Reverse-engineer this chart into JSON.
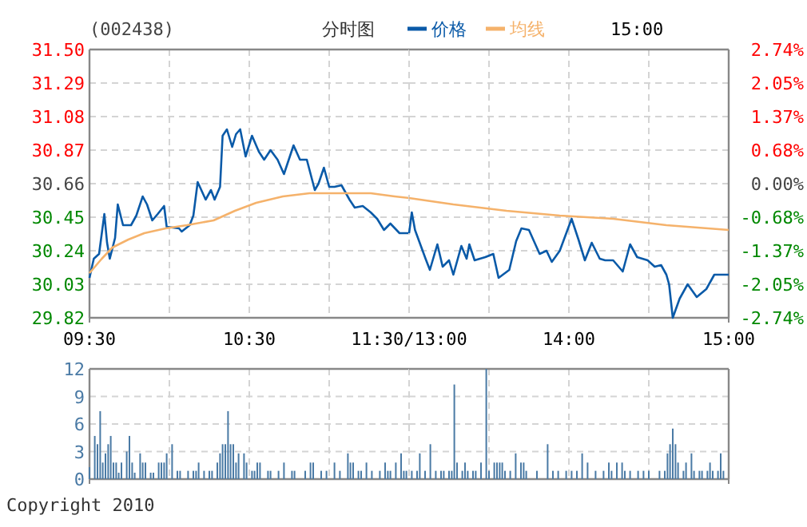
{
  "chart_data": [
    {
      "type": "line",
      "title": "(002438)",
      "subtitle": "分时图",
      "legend": "top",
      "grid": true,
      "xlim": [
        9.5,
        11.5
      ],
      "xticks": [
        {
          "value": 9.5,
          "label": "09:30"
        },
        {
          "value": 10,
          "label": null
        },
        {
          "value": 10.5,
          "label": "10:30"
        },
        {
          "value": 11,
          "label": null
        },
        {
          "value": 11.5,
          "label": "11:30/13:00"
        }
      ],
      "ylim": [
        29.82,
        31.5
      ],
      "yticks": [
        29.82,
        30.03,
        30.24,
        30.45,
        30.66,
        30.87,
        31.08,
        31.29,
        {
          "value": 31.5,
          "label": "31.50"
        }
      ],
      "series": [
        {
          "name": "价格",
          "color": "#0a5aa8",
          "x": [
            9.5,
            9.527,
            9.56,
            9.593,
            9.61,
            9.627,
            9.66,
            9.677,
            9.71,
            9.76,
            9.793,
            9.833,
            9.86,
            9.893,
            9.927,
            9.967,
            9.983,
            10.06,
            10.077,
            10.127,
            10.15,
            10.177,
            10.227,
            10.26,
            10.283,
            10.317,
            10.333,
            10.36,
            10.393,
            10.417,
            10.443,
            10.477,
            10.517,
            10.56,
            10.593,
            10.633,
            10.677,
            10.717,
            10.777,
            10.817,
            10.86,
            10.91,
            10.933,
            10.967,
            11,
            11.033,
            11.077,
            11.127,
            11.16,
            11.21,
            11.26,
            11.3,
            11.343,
            11.383,
            11.44,
            11.5
          ],
          "values": [
            30.07,
            30.19,
            30.22,
            30.47,
            30.29,
            30.19,
            30.32,
            30.53,
            30.4,
            30.4,
            30.46,
            30.58,
            30.53,
            30.43,
            30.47,
            30.52,
            30.39,
            30.38,
            30.36,
            30.4,
            30.46,
            30.67,
            30.56,
            30.62,
            30.56,
            30.64,
            30.96,
            31.0,
            30.89,
            30.97,
            31.0,
            30.83,
            30.96,
            30.86,
            30.81,
            30.87,
            30.81,
            30.72,
            30.9,
            30.81,
            30.81,
            30.62,
            30.66,
            30.76,
            30.64,
            30.64,
            30.65,
            30.56,
            30.51,
            30.52,
            30.48,
            30.44,
            30.37,
            30.41,
            30.35,
            30.35
          ]
        },
        {
          "name": "均线",
          "color": "#f5b26b",
          "x": [
            9.5,
            9.577,
            9.643,
            9.743,
            9.843,
            9.977,
            10.11,
            10.277,
            10.41,
            10.543,
            10.71,
            10.877,
            11.11,
            11.26,
            11.41,
            11.5
          ],
          "values": [
            30.1,
            30.19,
            30.26,
            30.31,
            30.35,
            30.38,
            30.4,
            30.43,
            30.49,
            30.54,
            30.58,
            30.6,
            30.6,
            30.6,
            30.58,
            30.57
          ]
        }
      ]
    },
    {
      "type": "line",
      "annotations": [
        "15:00"
      ],
      "grid": true,
      "tick_labels": "x",
      "xlim": [
        13,
        15
      ],
      "xticks": [
        {
          "value": 13,
          "label": null
        },
        {
          "value": 13.5,
          "label": null
        },
        {
          "value": 14,
          "label": "14:00"
        },
        {
          "value": 14.5,
          "label": null
        },
        {
          "value": 15,
          "label": "15:00"
        }
      ],
      "ylim": [
        29.82,
        31.5
      ],
      "yticks": [
        29.82,
        30.03,
        30.24,
        30.45,
        30.66,
        30.87,
        31.08,
        31.29,
        31.5
      ],
      "y2lim": [
        -2.74,
        2.74
      ],
      "y2ticks": [
        {
          "value": -2.74,
          "label": "-2.74%"
        },
        {
          "value": -2.05,
          "label": "-2.05%"
        },
        {
          "value": -1.37,
          "label": "-1.37%"
        },
        {
          "value": -0.68,
          "label": "-0.68%"
        },
        {
          "value": 0,
          "label": "0.00%"
        },
        {
          "value": 0.68,
          "label": "0.68%"
        },
        {
          "value": 1.37,
          "label": "1.37%"
        },
        {
          "value": 2.05,
          "label": "2.05%"
        },
        {
          "value": 2.74,
          "label": "2.74%"
        }
      ],
      "series": [
        {
          "color": "#0a5aa8",
          "x": [
            13,
            13.017,
            13.037,
            13.103,
            13.13,
            13.177,
            13.21,
            13.25,
            13.277,
            13.327,
            13.36,
            13.377,
            13.41,
            13.477,
            13.527,
            13.56,
            13.627,
            13.67,
            13.703,
            13.75,
            13.817,
            13.86,
            13.893,
            13.943,
            14.017,
            14.06,
            14.1,
            14.143,
            14.193,
            14.227,
            14.277,
            14.337,
            14.383,
            14.427,
            14.493,
            14.537,
            14.577,
            14.61,
            14.627,
            14.65,
            14.693,
            14.743,
            14.8,
            14.86,
            14.91,
            14.943,
            15
          ],
          "values": [
            30.35,
            30.48,
            30.37,
            30.19,
            30.12,
            30.28,
            30.14,
            30.18,
            30.09,
            30.27,
            30.19,
            30.28,
            30.18,
            30.2,
            30.22,
            30.07,
            30.12,
            30.3,
            30.38,
            30.37,
            30.22,
            30.24,
            30.17,
            30.24,
            30.44,
            30.31,
            30.18,
            30.29,
            30.19,
            30.18,
            30.18,
            30.11,
            30.28,
            30.2,
            30.18,
            30.14,
            30.15,
            30.09,
            30.03,
            29.82,
            29.94,
            30.03,
            29.95,
            30.0,
            30.09,
            30.09,
            30.09
          ]
        },
        {
          "color": "#f5b26b",
          "x": [
            13,
            13.277,
            13.61,
            13.943,
            14.277,
            14.61,
            15
          ],
          "values": [
            30.57,
            30.53,
            30.49,
            30.46,
            30.44,
            30.4,
            30.37
          ]
        }
      ]
    },
    {
      "type": "bar",
      "annotations": [
        "Copyright 2010"
      ],
      "grid": true,
      "tick_labels": "y",
      "color": "#4a7aa5",
      "xlim": [
        9.5,
        11.5
      ],
      "xticks": [
        9.5,
        10,
        10.5,
        11,
        11.5
      ],
      "ylim": [
        0,
        12
      ],
      "yticks": [
        0,
        3,
        6,
        9,
        12
      ],
      "x": [
        9.5,
        9.533,
        9.55,
        9.567,
        9.583,
        9.6,
        9.617,
        9.633,
        9.65,
        9.667,
        9.683,
        9.7,
        9.733,
        9.75,
        9.767,
        9.783,
        9.817,
        9.833,
        9.85,
        9.883,
        9.9,
        9.933,
        9.95,
        9.967,
        9.983,
        10.017,
        10.05,
        10.067,
        10.117,
        10.15,
        10.167,
        10.183,
        10.217,
        10.25,
        10.267,
        10.3,
        10.317,
        10.333,
        10.35,
        10.367,
        10.383,
        10.4,
        10.417,
        10.433,
        10.467,
        10.483,
        10.517,
        10.533,
        10.55,
        10.567,
        10.617,
        10.633,
        10.683,
        10.717,
        10.767,
        10.783,
        10.85,
        10.883,
        10.9,
        10.95,
        10.983,
        11.033,
        11.067,
        11.117,
        11.133,
        11.15,
        11.183,
        11.2,
        11.233,
        11.267,
        11.317,
        11.35,
        11.367,
        11.383,
        11.417,
        11.45,
        11.467,
        11.483
      ],
      "values": [
        1.3,
        4.7,
        3.8,
        7.4,
        1.8,
        2.8,
        3.8,
        4.7,
        1.8,
        1.8,
        0.7,
        1.8,
        3.0,
        4.7,
        1.8,
        0.7,
        2.8,
        1.8,
        1.8,
        0.7,
        0.7,
        1.8,
        1.8,
        1.8,
        2.8,
        3.8,
        0.9,
        0.9,
        0.9,
        0.9,
        0.9,
        1.8,
        0.9,
        0.9,
        0.9,
        1.8,
        2.8,
        3.8,
        3.8,
        7.4,
        3.8,
        3.8,
        1.8,
        2.8,
        2.8,
        1.8,
        0.9,
        0.9,
        1.8,
        1.8,
        0.9,
        0.9,
        0.9,
        1.8,
        0.9,
        0.9,
        0.9,
        1.8,
        1.8,
        0.9,
        0.9,
        1.8,
        0.9,
        2.8,
        1.8,
        1.8,
        0.9,
        0.9,
        1.8,
        0.9,
        0.9,
        1.8,
        0.9,
        0.9,
        1.8,
        2.8,
        0.9,
        0.9
      ]
    },
    {
      "type": "bar",
      "grid": true,
      "tick_labels": false,
      "color": "#4a7aa5",
      "xlim": [
        13,
        15
      ],
      "xticks": [
        13,
        13.5,
        14,
        14.5,
        15
      ],
      "ylim": [
        0,
        12
      ],
      "yticks": [
        0,
        3,
        6,
        9,
        12
      ],
      "x": [
        13.017,
        13.05,
        13.067,
        13.1,
        13.133,
        13.167,
        13.2,
        13.217,
        13.25,
        13.267,
        13.283,
        13.3,
        13.333,
        13.35,
        13.367,
        13.4,
        13.417,
        13.45,
        13.483,
        13.5,
        13.533,
        13.55,
        13.567,
        13.583,
        13.6,
        13.633,
        13.667,
        13.7,
        13.717,
        13.733,
        13.8,
        13.867,
        13.9,
        13.933,
        13.983,
        14.017,
        14.05,
        14.083,
        14.117,
        14.167,
        14.217,
        14.25,
        14.267,
        14.3,
        14.333,
        14.35,
        14.383,
        14.433,
        14.467,
        14.5,
        14.567,
        14.6,
        14.617,
        14.633,
        14.65,
        14.667,
        14.683,
        14.717,
        14.733,
        14.767,
        14.783,
        14.817,
        14.833,
        14.867,
        14.883,
        14.9,
        14.933,
        14.95,
        14.967
      ],
      "values": [
        0.9,
        0.9,
        2.8,
        0.9,
        3.8,
        0.9,
        0.9,
        0.9,
        0.9,
        0.9,
        10.3,
        1.8,
        0.9,
        1.8,
        0.9,
        0.9,
        0.9,
        1.8,
        12.0,
        0.9,
        1.8,
        1.8,
        1.8,
        1.8,
        0.9,
        0.9,
        2.8,
        1.8,
        1.8,
        0.9,
        0.9,
        3.8,
        0.9,
        0.9,
        0.9,
        0.9,
        0.9,
        2.8,
        1.8,
        0.9,
        0.9,
        1.8,
        0.9,
        1.8,
        1.8,
        0.9,
        0.9,
        0.9,
        0.9,
        0.9,
        0.9,
        0.9,
        2.8,
        3.8,
        5.5,
        3.8,
        1.8,
        0.9,
        1.8,
        2.8,
        0.9,
        0.9,
        0.9,
        0.9,
        1.8,
        0.9,
        0.9,
        2.8,
        0.9
      ]
    }
  ]
}
